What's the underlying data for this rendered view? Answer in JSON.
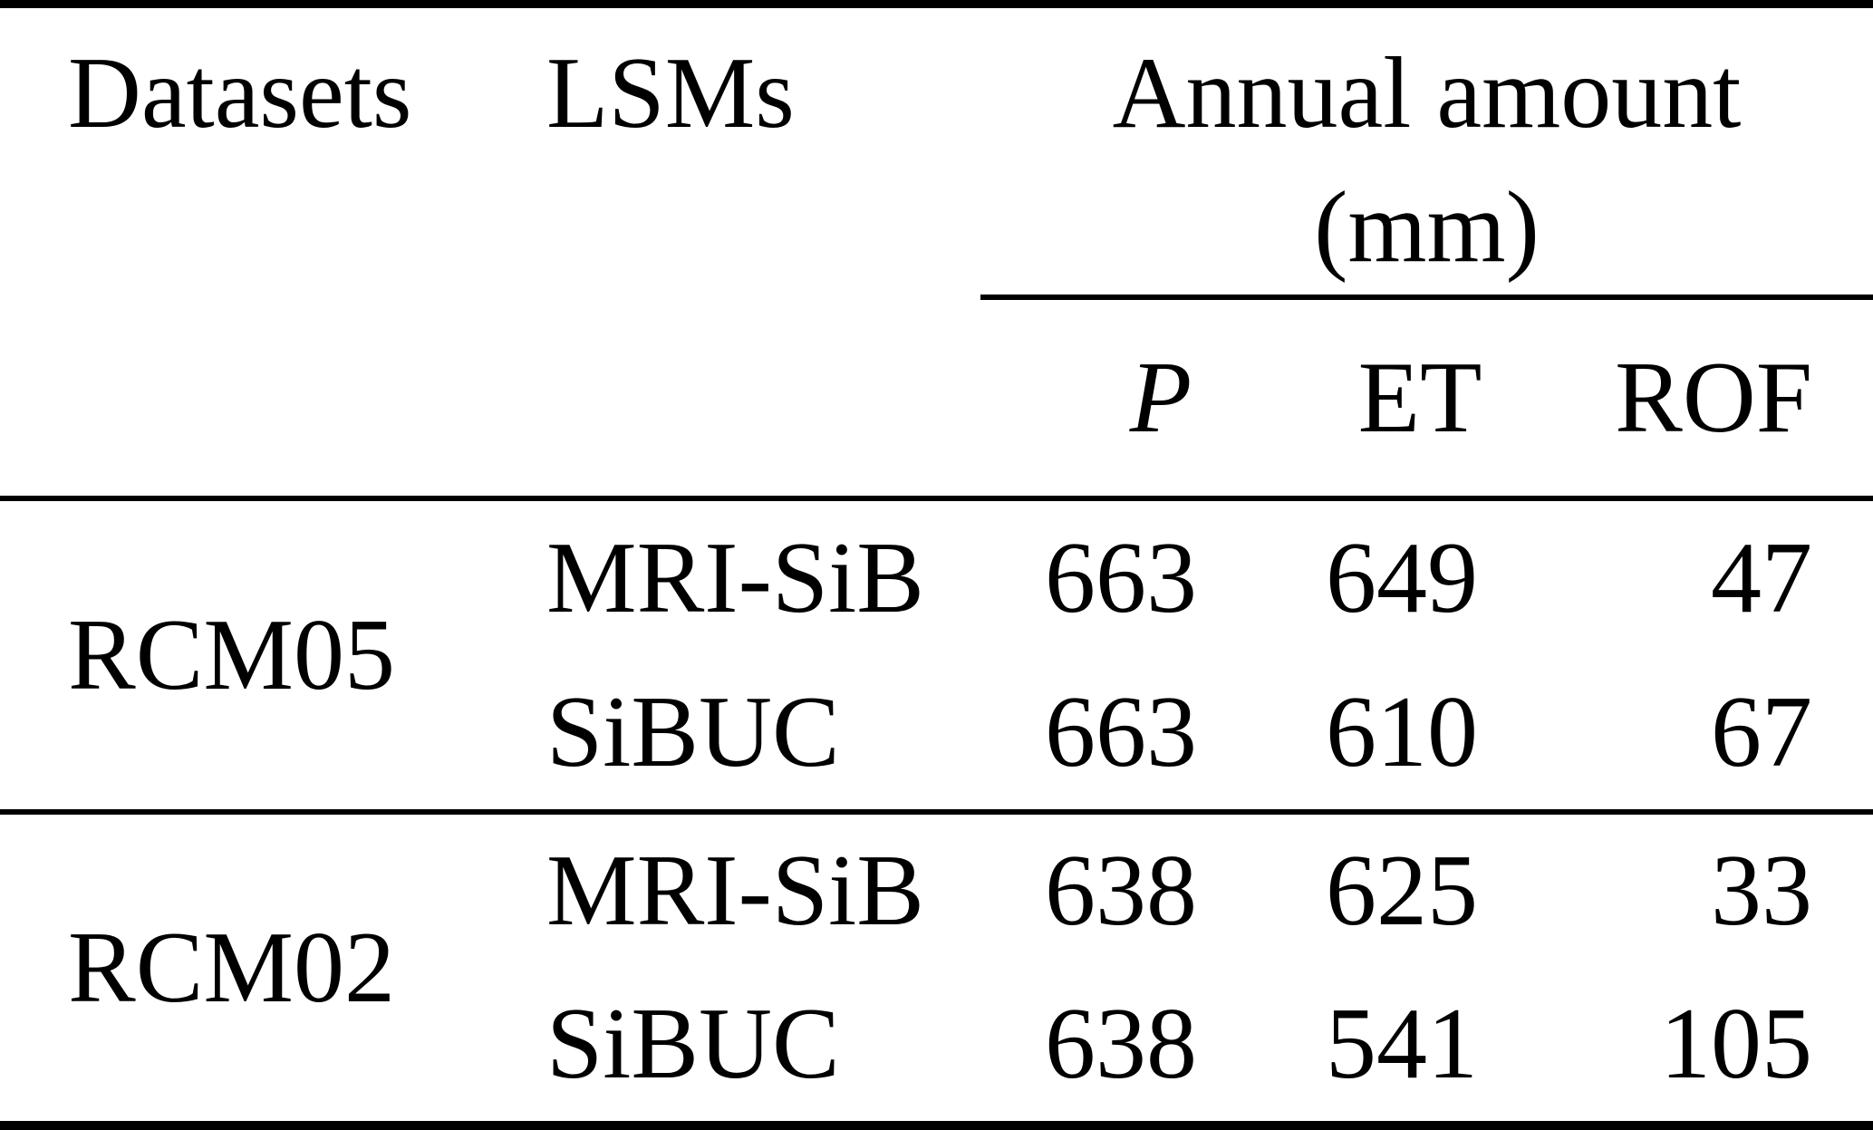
{
  "table": {
    "header": {
      "col_datasets": "Datasets",
      "col_lsms": "LSMs",
      "annual_amount_line1": "Annual amount",
      "annual_amount_line2": "(mm)",
      "subcolumns": [
        "P",
        "ET",
        "ROF"
      ]
    },
    "groups": [
      {
        "dataset": "RCM05",
        "rows": [
          {
            "lsm": "MRI-SiB",
            "p": "663",
            "et": "649",
            "rof": "47"
          },
          {
            "lsm": "SiBUC",
            "p": "663",
            "et": "610",
            "rof": "67"
          }
        ]
      },
      {
        "dataset": "RCM02",
        "rows": [
          {
            "lsm": "MRI-SiB",
            "p": "638",
            "et": "625",
            "rof": "33"
          },
          {
            "lsm": "SiBUC",
            "p": "638",
            "et": "541",
            "rof": "105"
          }
        ]
      }
    ],
    "colors": {
      "text": "#000000",
      "background": "#ffffff",
      "rule": "#000000"
    }
  },
  "chart_data": {
    "type": "table",
    "title": "Annual amount (mm)",
    "columns": [
      "Datasets",
      "LSMs",
      "P",
      "ET",
      "ROF"
    ],
    "rows": [
      [
        "RCM05",
        "MRI-SiB",
        663,
        649,
        47
      ],
      [
        "RCM05",
        "SiBUC",
        663,
        610,
        67
      ],
      [
        "RCM02",
        "MRI-SiB",
        638,
        625,
        33
      ],
      [
        "RCM02",
        "SiBUC",
        638,
        541,
        105
      ]
    ]
  }
}
